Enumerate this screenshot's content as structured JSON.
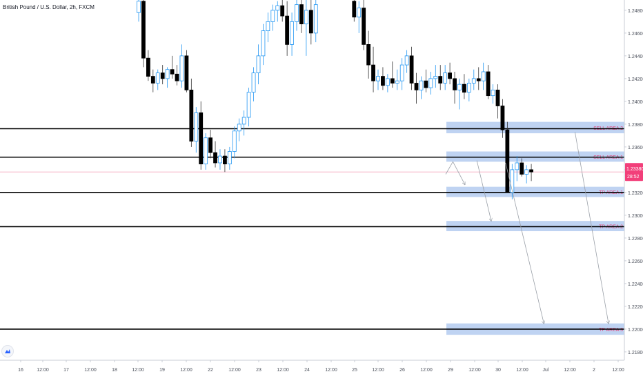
{
  "header": {
    "title": "British Pound / U.S. Dollar, 2h, FXCM"
  },
  "price_tag": {
    "price": "1.23380",
    "countdown": "28:52"
  },
  "chart_data": {
    "type": "candlestick",
    "title": "British Pound / U.S. Dollar, 2h, FXCM",
    "y_ticks": [
      "1.24800",
      "1.24600",
      "1.24400",
      "1.24200",
      "1.24000",
      "1.23800",
      "1.23600",
      "1.23400",
      "1.23200",
      "1.23000",
      "1.22800",
      "1.22600",
      "1.22400",
      "1.22200",
      "1.22000",
      "1.21800"
    ],
    "ylim": [
      1.2168,
      1.2486
    ],
    "x_ticks": [
      "16",
      "12:00",
      "17",
      "12:00",
      "18",
      "12:00",
      "19",
      "12:00",
      "22",
      "12:00",
      "23",
      "12:00",
      "24",
      "12:00",
      "25",
      "12:00",
      "26",
      "12:00",
      "29",
      "12:00",
      "30",
      "12:00",
      "Jul",
      "12:00",
      "2",
      "12:00"
    ],
    "current_price": 1.2338,
    "horizontal_levels": [
      1.2376,
      1.2351,
      1.232,
      1.229,
      1.22
    ],
    "zones": [
      {
        "label": "SELL AREA 2",
        "low": 1.2372,
        "high": 1.2382
      },
      {
        "label": "SELL AREA 1",
        "low": 1.2347,
        "high": 1.2356
      },
      {
        "label": "TP AREA 1",
        "low": 1.2316,
        "high": 1.2325
      },
      {
        "label": "TP AREA 2",
        "low": 1.2286,
        "high": 1.2295
      },
      {
        "label": "TP AREA 3",
        "low": 1.2195,
        "high": 1.2205
      }
    ],
    "projection_arrows": [
      {
        "from": [
          29.05,
          1.2347
        ],
        "to": [
          29.3,
          1.2327
        ]
      },
      {
        "from": [
          29.55,
          1.2348
        ],
        "to": [
          29.85,
          1.2295
        ]
      },
      {
        "from": [
          30.15,
          1.2346
        ],
        "to": [
          30.95,
          1.2205
        ]
      },
      {
        "from": [
          31.6,
          1.2373
        ],
        "to": [
          32.3,
          1.2205
        ]
      }
    ],
    "candles": [
      {
        "t": 11.0,
        "o": 1.2478,
        "h": 1.249,
        "l": 1.247,
        "c": 1.2488
      },
      {
        "t": 11.2,
        "o": 1.2488,
        "h": 1.249,
        "l": 1.243,
        "c": 1.2438
      },
      {
        "t": 11.4,
        "o": 1.2438,
        "h": 1.2445,
        "l": 1.2418,
        "c": 1.2422
      },
      {
        "t": 11.6,
        "o": 1.2422,
        "h": 1.2428,
        "l": 1.2408,
        "c": 1.2416
      },
      {
        "t": 11.8,
        "o": 1.2416,
        "h": 1.2428,
        "l": 1.241,
        "c": 1.2425
      },
      {
        "t": 12.0,
        "o": 1.2425,
        "h": 1.2432,
        "l": 1.2415,
        "c": 1.242
      },
      {
        "t": 12.2,
        "o": 1.242,
        "h": 1.243,
        "l": 1.2412,
        "c": 1.2428
      },
      {
        "t": 12.4,
        "o": 1.2428,
        "h": 1.244,
        "l": 1.242,
        "c": 1.2424
      },
      {
        "t": 12.6,
        "o": 1.2424,
        "h": 1.2432,
        "l": 1.2414,
        "c": 1.2418
      },
      {
        "t": 12.8,
        "o": 1.2418,
        "h": 1.245,
        "l": 1.2412,
        "c": 1.244
      },
      {
        "t": 13.0,
        "o": 1.244,
        "h": 1.2445,
        "l": 1.2408,
        "c": 1.241
      },
      {
        "t": 13.2,
        "o": 1.241,
        "h": 1.242,
        "l": 1.236,
        "c": 1.2365
      },
      {
        "t": 13.4,
        "o": 1.2365,
        "h": 1.2395,
        "l": 1.2355,
        "c": 1.239
      },
      {
        "t": 13.6,
        "o": 1.239,
        "h": 1.24,
        "l": 1.234,
        "c": 1.2345
      },
      {
        "t": 13.8,
        "o": 1.2345,
        "h": 1.2372,
        "l": 1.234,
        "c": 1.2368
      },
      {
        "t": 14.0,
        "o": 1.2368,
        "h": 1.2375,
        "l": 1.235,
        "c": 1.2355
      },
      {
        "t": 14.2,
        "o": 1.2355,
        "h": 1.2365,
        "l": 1.2342,
        "c": 1.2346
      },
      {
        "t": 14.4,
        "o": 1.2346,
        "h": 1.2358,
        "l": 1.234,
        "c": 1.2352
      },
      {
        "t": 14.6,
        "o": 1.2352,
        "h": 1.2358,
        "l": 1.2338,
        "c": 1.2345
      },
      {
        "t": 14.8,
        "o": 1.2345,
        "h": 1.236,
        "l": 1.234,
        "c": 1.2356
      },
      {
        "t": 15.0,
        "o": 1.2356,
        "h": 1.2378,
        "l": 1.235,
        "c": 1.2374
      },
      {
        "t": 15.2,
        "o": 1.2374,
        "h": 1.2385,
        "l": 1.2365,
        "c": 1.238
      },
      {
        "t": 15.4,
        "o": 1.238,
        "h": 1.2392,
        "l": 1.237,
        "c": 1.2386
      },
      {
        "t": 15.6,
        "o": 1.2386,
        "h": 1.2412,
        "l": 1.2378,
        "c": 1.2408
      },
      {
        "t": 15.8,
        "o": 1.2408,
        "h": 1.243,
        "l": 1.24,
        "c": 1.2425
      },
      {
        "t": 16.0,
        "o": 1.2425,
        "h": 1.245,
        "l": 1.2415,
        "c": 1.244
      },
      {
        "t": 16.2,
        "o": 1.244,
        "h": 1.2468,
        "l": 1.2432,
        "c": 1.2462
      },
      {
        "t": 16.4,
        "o": 1.2462,
        "h": 1.2478,
        "l": 1.2452,
        "c": 1.247
      },
      {
        "t": 16.6,
        "o": 1.247,
        "h": 1.2485,
        "l": 1.2462,
        "c": 1.248
      },
      {
        "t": 16.8,
        "o": 1.248,
        "h": 1.2488,
        "l": 1.247,
        "c": 1.2484
      },
      {
        "t": 17.0,
        "o": 1.2484,
        "h": 1.249,
        "l": 1.247,
        "c": 1.2475
      },
      {
        "t": 17.2,
        "o": 1.2475,
        "h": 1.2488,
        "l": 1.244,
        "c": 1.245
      },
      {
        "t": 17.4,
        "o": 1.245,
        "h": 1.2478,
        "l": 1.244,
        "c": 1.247
      },
      {
        "t": 17.6,
        "o": 1.247,
        "h": 1.249,
        "l": 1.2462,
        "c": 1.2485
      },
      {
        "t": 17.8,
        "o": 1.2485,
        "h": 1.249,
        "l": 1.246,
        "c": 1.2468
      },
      {
        "t": 18.0,
        "o": 1.2468,
        "h": 1.249,
        "l": 1.244,
        "c": 1.248
      },
      {
        "t": 18.2,
        "o": 1.248,
        "h": 1.249,
        "l": 1.245,
        "c": 1.246
      },
      {
        "t": 18.4,
        "o": 1.246,
        "h": 1.249,
        "l": 1.2452,
        "c": 1.2485
      },
      {
        "t": 20.0,
        "o": 1.2488,
        "h": 1.249,
        "l": 1.247,
        "c": 1.2474
      },
      {
        "t": 20.2,
        "o": 1.2474,
        "h": 1.2488,
        "l": 1.246,
        "c": 1.2482
      },
      {
        "t": 20.4,
        "o": 1.2482,
        "h": 1.249,
        "l": 1.2445,
        "c": 1.245
      },
      {
        "t": 20.6,
        "o": 1.245,
        "h": 1.2462,
        "l": 1.242,
        "c": 1.2432
      },
      {
        "t": 20.8,
        "o": 1.2432,
        "h": 1.2448,
        "l": 1.2408,
        "c": 1.2418
      },
      {
        "t": 21.0,
        "o": 1.2418,
        "h": 1.2428,
        "l": 1.241,
        "c": 1.2422
      },
      {
        "t": 21.2,
        "o": 1.2422,
        "h": 1.243,
        "l": 1.241,
        "c": 1.2414
      },
      {
        "t": 21.4,
        "o": 1.2414,
        "h": 1.2424,
        "l": 1.2408,
        "c": 1.242
      },
      {
        "t": 21.6,
        "o": 1.242,
        "h": 1.2435,
        "l": 1.2412,
        "c": 1.2416
      },
      {
        "t": 21.8,
        "o": 1.2416,
        "h": 1.2428,
        "l": 1.241,
        "c": 1.2418
      },
      {
        "t": 22.0,
        "o": 1.2418,
        "h": 1.2438,
        "l": 1.241,
        "c": 1.2432
      },
      {
        "t": 22.2,
        "o": 1.2432,
        "h": 1.2445,
        "l": 1.2425,
        "c": 1.244
      },
      {
        "t": 22.4,
        "o": 1.244,
        "h": 1.2448,
        "l": 1.241,
        "c": 1.2416
      },
      {
        "t": 22.6,
        "o": 1.2416,
        "h": 1.2425,
        "l": 1.2398,
        "c": 1.241
      },
      {
        "t": 22.8,
        "o": 1.241,
        "h": 1.2422,
        "l": 1.2402,
        "c": 1.2418
      },
      {
        "t": 23.0,
        "o": 1.2418,
        "h": 1.2428,
        "l": 1.2408,
        "c": 1.2412
      },
      {
        "t": 23.2,
        "o": 1.2412,
        "h": 1.2426,
        "l": 1.2406,
        "c": 1.242
      },
      {
        "t": 23.4,
        "o": 1.242,
        "h": 1.2432,
        "l": 1.2412,
        "c": 1.2422
      },
      {
        "t": 23.6,
        "o": 1.2422,
        "h": 1.2432,
        "l": 1.241,
        "c": 1.2416
      },
      {
        "t": 23.8,
        "o": 1.2416,
        "h": 1.2432,
        "l": 1.241,
        "c": 1.2425
      },
      {
        "t": 24.0,
        "o": 1.2425,
        "h": 1.2434,
        "l": 1.2415,
        "c": 1.242
      },
      {
        "t": 24.2,
        "o": 1.242,
        "h": 1.2426,
        "l": 1.2398,
        "c": 1.241
      },
      {
        "t": 24.4,
        "o": 1.241,
        "h": 1.242,
        "l": 1.2393,
        "c": 1.2415
      },
      {
        "t": 24.6,
        "o": 1.2415,
        "h": 1.2424,
        "l": 1.2402,
        "c": 1.2408
      },
      {
        "t": 24.8,
        "o": 1.2408,
        "h": 1.242,
        "l": 1.24,
        "c": 1.2416
      },
      {
        "t": 25.0,
        "o": 1.2416,
        "h": 1.2428,
        "l": 1.241,
        "c": 1.242
      },
      {
        "t": 25.2,
        "o": 1.242,
        "h": 1.243,
        "l": 1.241,
        "c": 1.2418
      },
      {
        "t": 25.4,
        "o": 1.2418,
        "h": 1.2434,
        "l": 1.241,
        "c": 1.2426
      },
      {
        "t": 25.6,
        "o": 1.2426,
        "h": 1.2432,
        "l": 1.2402,
        "c": 1.2405
      },
      {
        "t": 25.8,
        "o": 1.2405,
        "h": 1.2415,
        "l": 1.2398,
        "c": 1.241
      },
      {
        "t": 26.0,
        "o": 1.241,
        "h": 1.2415,
        "l": 1.2385,
        "c": 1.2396
      },
      {
        "t": 26.2,
        "o": 1.2396,
        "h": 1.2402,
        "l": 1.2368,
        "c": 1.2375
      },
      {
        "t": 26.4,
        "o": 1.2375,
        "h": 1.2382,
        "l": 1.2322,
        "c": 1.232
      },
      {
        "t": 26.6,
        "o": 1.232,
        "h": 1.2345,
        "l": 1.2314,
        "c": 1.234
      },
      {
        "t": 26.8,
        "o": 1.234,
        "h": 1.2352,
        "l": 1.233,
        "c": 1.2346
      },
      {
        "t": 27.0,
        "o": 1.2346,
        "h": 1.235,
        "l": 1.2334,
        "c": 1.2336
      },
      {
        "t": 27.2,
        "o": 1.2336,
        "h": 1.2344,
        "l": 1.2328,
        "c": 1.234
      },
      {
        "t": 27.4,
        "o": 1.234,
        "h": 1.2345,
        "l": 1.233,
        "c": 1.2338
      }
    ]
  },
  "colors": {
    "up_candle": "#2196f3",
    "down_candle": "#000000",
    "zone_fill": "#bfd3f2",
    "zone_label": "#e0447a",
    "price_tag": "#f23f7a",
    "current_price_line": "#f6a7be",
    "arrow": "#9aa0a8",
    "level_line": "#000000"
  }
}
